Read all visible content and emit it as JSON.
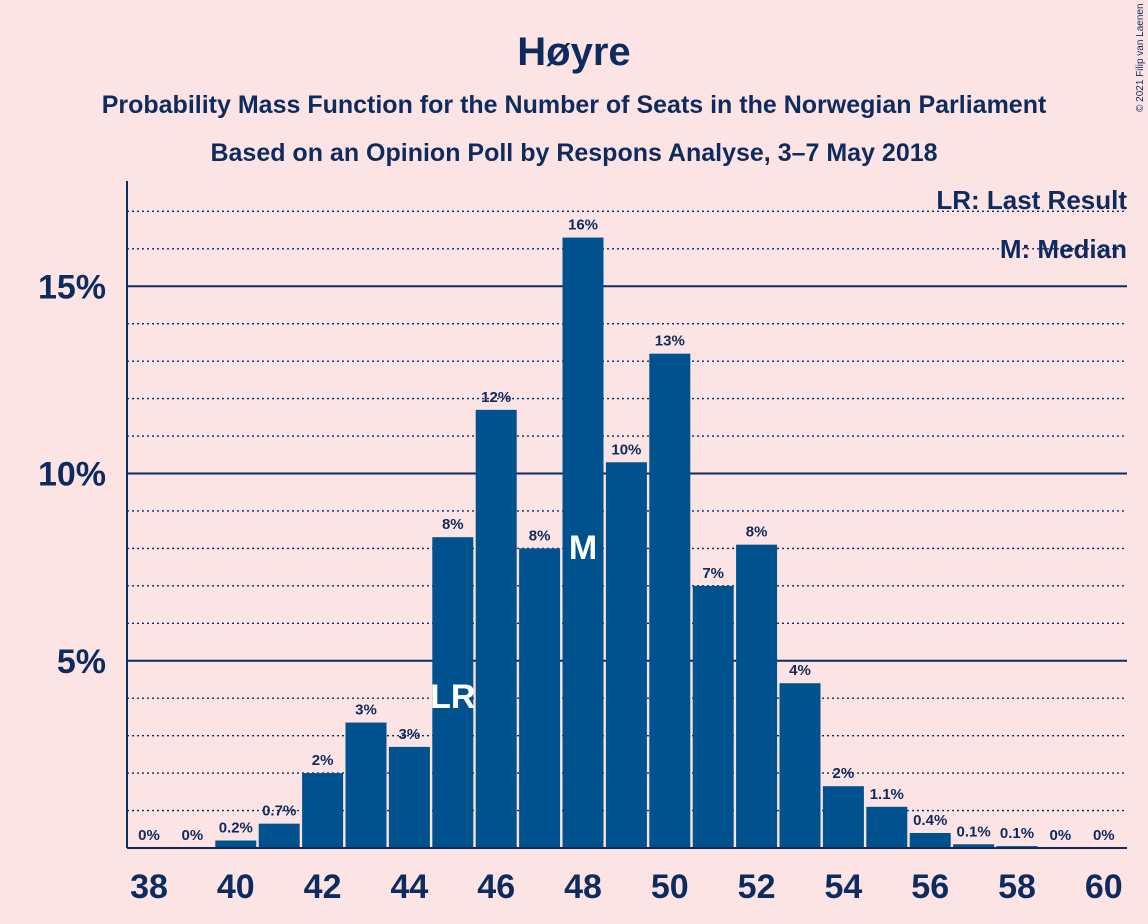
{
  "header": {
    "title": "Høyre",
    "subtitle1": "Probability Mass Function for the Number of Seats in the Norwegian Parliament",
    "subtitle2": "Based on an Opinion Poll by Respons Analyse, 3–7 May 2018"
  },
  "legend": {
    "last_result": "LR: Last Result",
    "median": "M: Median"
  },
  "copyright": "© 2021 Filip van Laenen",
  "colors": {
    "background": "#fde4e4",
    "bar": "#00528f",
    "text": "#0d2b5e"
  },
  "chart_data": {
    "type": "bar",
    "x": [
      38,
      39,
      40,
      41,
      42,
      43,
      44,
      45,
      46,
      47,
      48,
      49,
      50,
      51,
      52,
      53,
      54,
      55,
      56,
      57,
      58,
      59,
      60
    ],
    "values": [
      0,
      0,
      0.2,
      0.65,
      2.0,
      3.35,
      2.7,
      8.3,
      11.7,
      8.0,
      16.3,
      10.3,
      13.2,
      7.0,
      8.1,
      4.4,
      1.65,
      1.1,
      0.4,
      0.1,
      0.05,
      0,
      0
    ],
    "labels": [
      "0%",
      "0%",
      "0.2%",
      "0.7%",
      "2%",
      "3%",
      "3%",
      "8%",
      "12%",
      "8%",
      "16%",
      "10%",
      "13%",
      "7%",
      "8%",
      "4%",
      "2%",
      "1.1%",
      "0.4%",
      "0.1%",
      "0.1%",
      "0%",
      "0%"
    ],
    "xticks": [
      38,
      40,
      42,
      44,
      46,
      48,
      50,
      52,
      54,
      56,
      58,
      60
    ],
    "yticks": [
      5,
      10,
      15
    ],
    "ytick_labels": [
      "5%",
      "10%",
      "15%"
    ],
    "ylim": [
      0,
      17.7
    ],
    "grid": "dotted at every 1%, solid at every 5%",
    "last_result": 45,
    "last_result_marker": "LR",
    "median": 48,
    "median_marker": "M",
    "legend_position": "top-right"
  }
}
